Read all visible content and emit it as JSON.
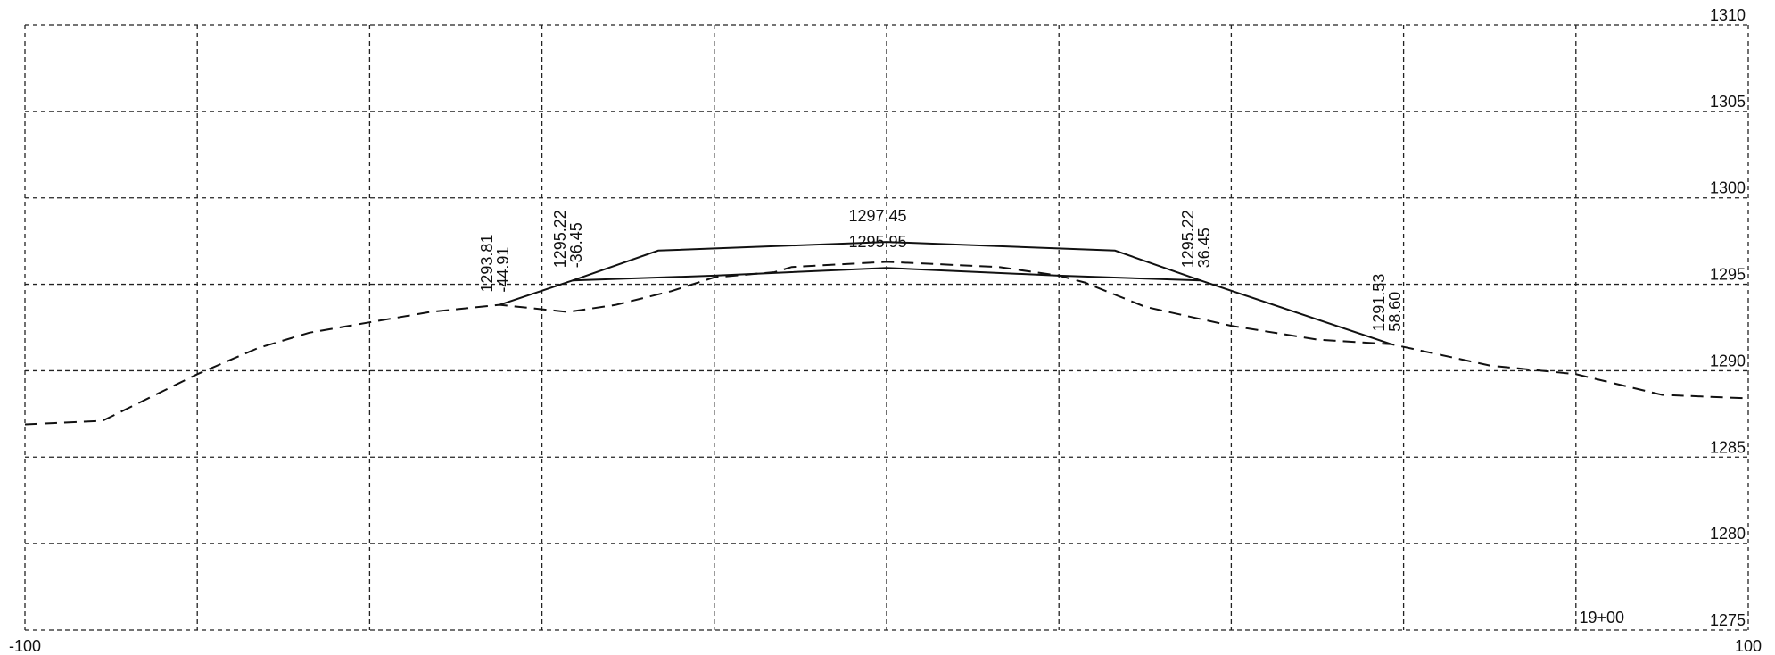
{
  "chart_data": {
    "type": "line",
    "station": "19+00",
    "xlim": [
      -100,
      100
    ],
    "ylim": [
      1275,
      1310
    ],
    "x_ticks": [
      -100,
      -80,
      -60,
      -40,
      -20,
      0,
      20,
      40,
      60,
      80,
      100
    ],
    "x_tick_labels": [
      {
        "x": -100,
        "label": "-100"
      },
      {
        "x": 100,
        "label": "100"
      }
    ],
    "y_ticks": [
      1275,
      1280,
      1285,
      1290,
      1295,
      1300,
      1305,
      1310
    ],
    "y_tick_labels": [
      "1275",
      "1280",
      "1285",
      "1290",
      "1295",
      "1300",
      "1305",
      "1310"
    ],
    "grid": true,
    "series": [
      {
        "style": "dashed",
        "points": [
          [
            -100,
            1286.9
          ],
          [
            -91,
            1287.1
          ],
          [
            -80,
            1289.8
          ],
          [
            -73,
            1291.3
          ],
          [
            -67,
            1292.2
          ],
          [
            -60,
            1292.8
          ],
          [
            -53,
            1293.4
          ],
          [
            -44.91,
            1293.81
          ],
          [
            -37,
            1293.4
          ],
          [
            -31.5,
            1293.8
          ],
          [
            -25,
            1294.6
          ],
          [
            -20,
            1295.4
          ],
          [
            -13,
            1295.7
          ],
          [
            -11,
            1296.0
          ],
          [
            0,
            1296.3
          ],
          [
            13,
            1296.0
          ],
          [
            20,
            1295.5
          ],
          [
            23,
            1295.1
          ],
          [
            30,
            1293.7
          ],
          [
            40,
            1292.6
          ],
          [
            50,
            1291.8
          ],
          [
            58.6,
            1291.53
          ],
          [
            70,
            1290.3
          ],
          [
            80,
            1289.8
          ],
          [
            90,
            1288.6
          ],
          [
            100,
            1288.4
          ]
        ]
      },
      {
        "style": "solid",
        "points": [
          [
            -44.91,
            1293.81
          ],
          [
            -36.45,
            1295.22
          ],
          [
            -26.5,
            1296.95
          ],
          [
            0,
            1297.45
          ],
          [
            26.5,
            1296.95
          ],
          [
            36.45,
            1295.22
          ],
          [
            58.6,
            1291.53
          ]
        ]
      },
      {
        "style": "solid",
        "points": [
          [
            -36.45,
            1295.22
          ],
          [
            -20,
            1295.5
          ],
          [
            0,
            1295.95
          ],
          [
            20,
            1295.5
          ],
          [
            36.45,
            1295.22
          ]
        ]
      }
    ],
    "annotations": [
      {
        "x": -44.91,
        "y": 1293.81,
        "lines": [
          "1293.81",
          "-44.91"
        ],
        "orientation": "vertical"
      },
      {
        "x": -36.45,
        "y": 1295.22,
        "lines": [
          "1295.22",
          "-36.45"
        ],
        "orientation": "vertical"
      },
      {
        "x": 0,
        "y": 1297.45,
        "lines": [
          "1297.45"
        ],
        "orientation": "horizontal"
      },
      {
        "x": 0,
        "y": 1295.95,
        "lines": [
          "1295.95"
        ],
        "orientation": "horizontal"
      },
      {
        "x": 36.45,
        "y": 1295.22,
        "lines": [
          "1295.22",
          "36.45"
        ],
        "orientation": "vertical"
      },
      {
        "x": 58.6,
        "y": 1291.53,
        "lines": [
          "1291.53",
          "58.60"
        ],
        "orientation": "vertical"
      }
    ]
  }
}
